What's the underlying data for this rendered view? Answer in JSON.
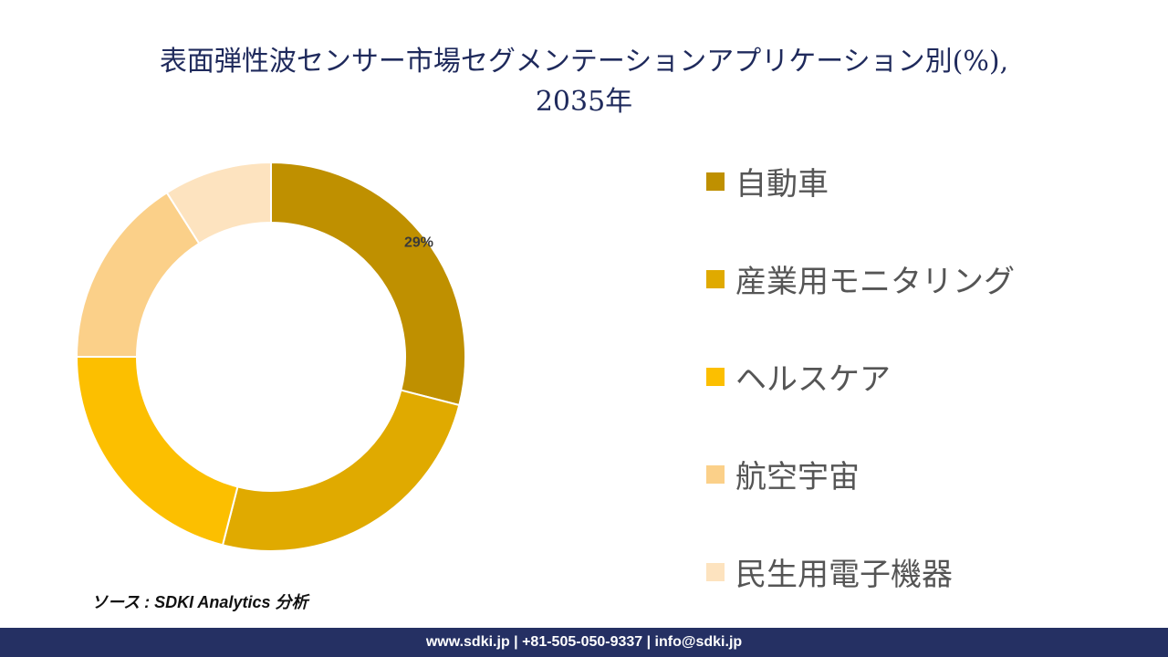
{
  "title": {
    "line1": "表面弾性波センサー市場セグメンテーションアプリケーション別(%),",
    "line2": "2035年"
  },
  "chart_data": {
    "type": "pie",
    "variant": "donut",
    "categories": [
      "自動車",
      "産業用モニタリング",
      "ヘルスケア",
      "航空宇宙",
      "民生用電子機器"
    ],
    "values": [
      29,
      25,
      21,
      16,
      9
    ],
    "colors": [
      "#bf9000",
      "#e0aa00",
      "#fcbf00",
      "#fbd089",
      "#fde3bf"
    ],
    "data_labels": [
      "29%",
      "",
      "",
      "",
      ""
    ],
    "legend_position": "right"
  },
  "source": "ソース : SDKI Analytics 分析",
  "footer": "www.sdki.jp | +81-505-050-9337 | info@sdki.jp"
}
